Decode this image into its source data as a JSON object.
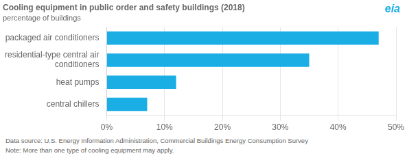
{
  "chart_data": {
    "type": "bar",
    "orientation": "horizontal",
    "title": "Cooling equipment in public order and safety buildings (2018)",
    "subtitle": "percentage of buildings",
    "categories": [
      "central chillers",
      "heat pumps",
      "residential-type central air\nconditioners",
      "packaged air conditioners"
    ],
    "values": [
      7,
      12,
      35,
      47
    ],
    "color": "#1aaee5",
    "xlim": [
      0,
      50
    ],
    "xticks": [
      {
        "value": 0,
        "label": "0%"
      },
      {
        "value": 10,
        "label": "10%"
      },
      {
        "value": 20,
        "label": "20%"
      },
      {
        "value": 30,
        "label": "30%"
      },
      {
        "value": 40,
        "label": "40%"
      },
      {
        "value": 50,
        "label": "50%"
      }
    ],
    "grid": true,
    "annotations": [
      "eia"
    ],
    "source": "Data source: U.S. Energy Information Administration, Commercial Buildings Energy Consumption Survey",
    "note": "Note: More than one type of cooling equipment may apply."
  }
}
